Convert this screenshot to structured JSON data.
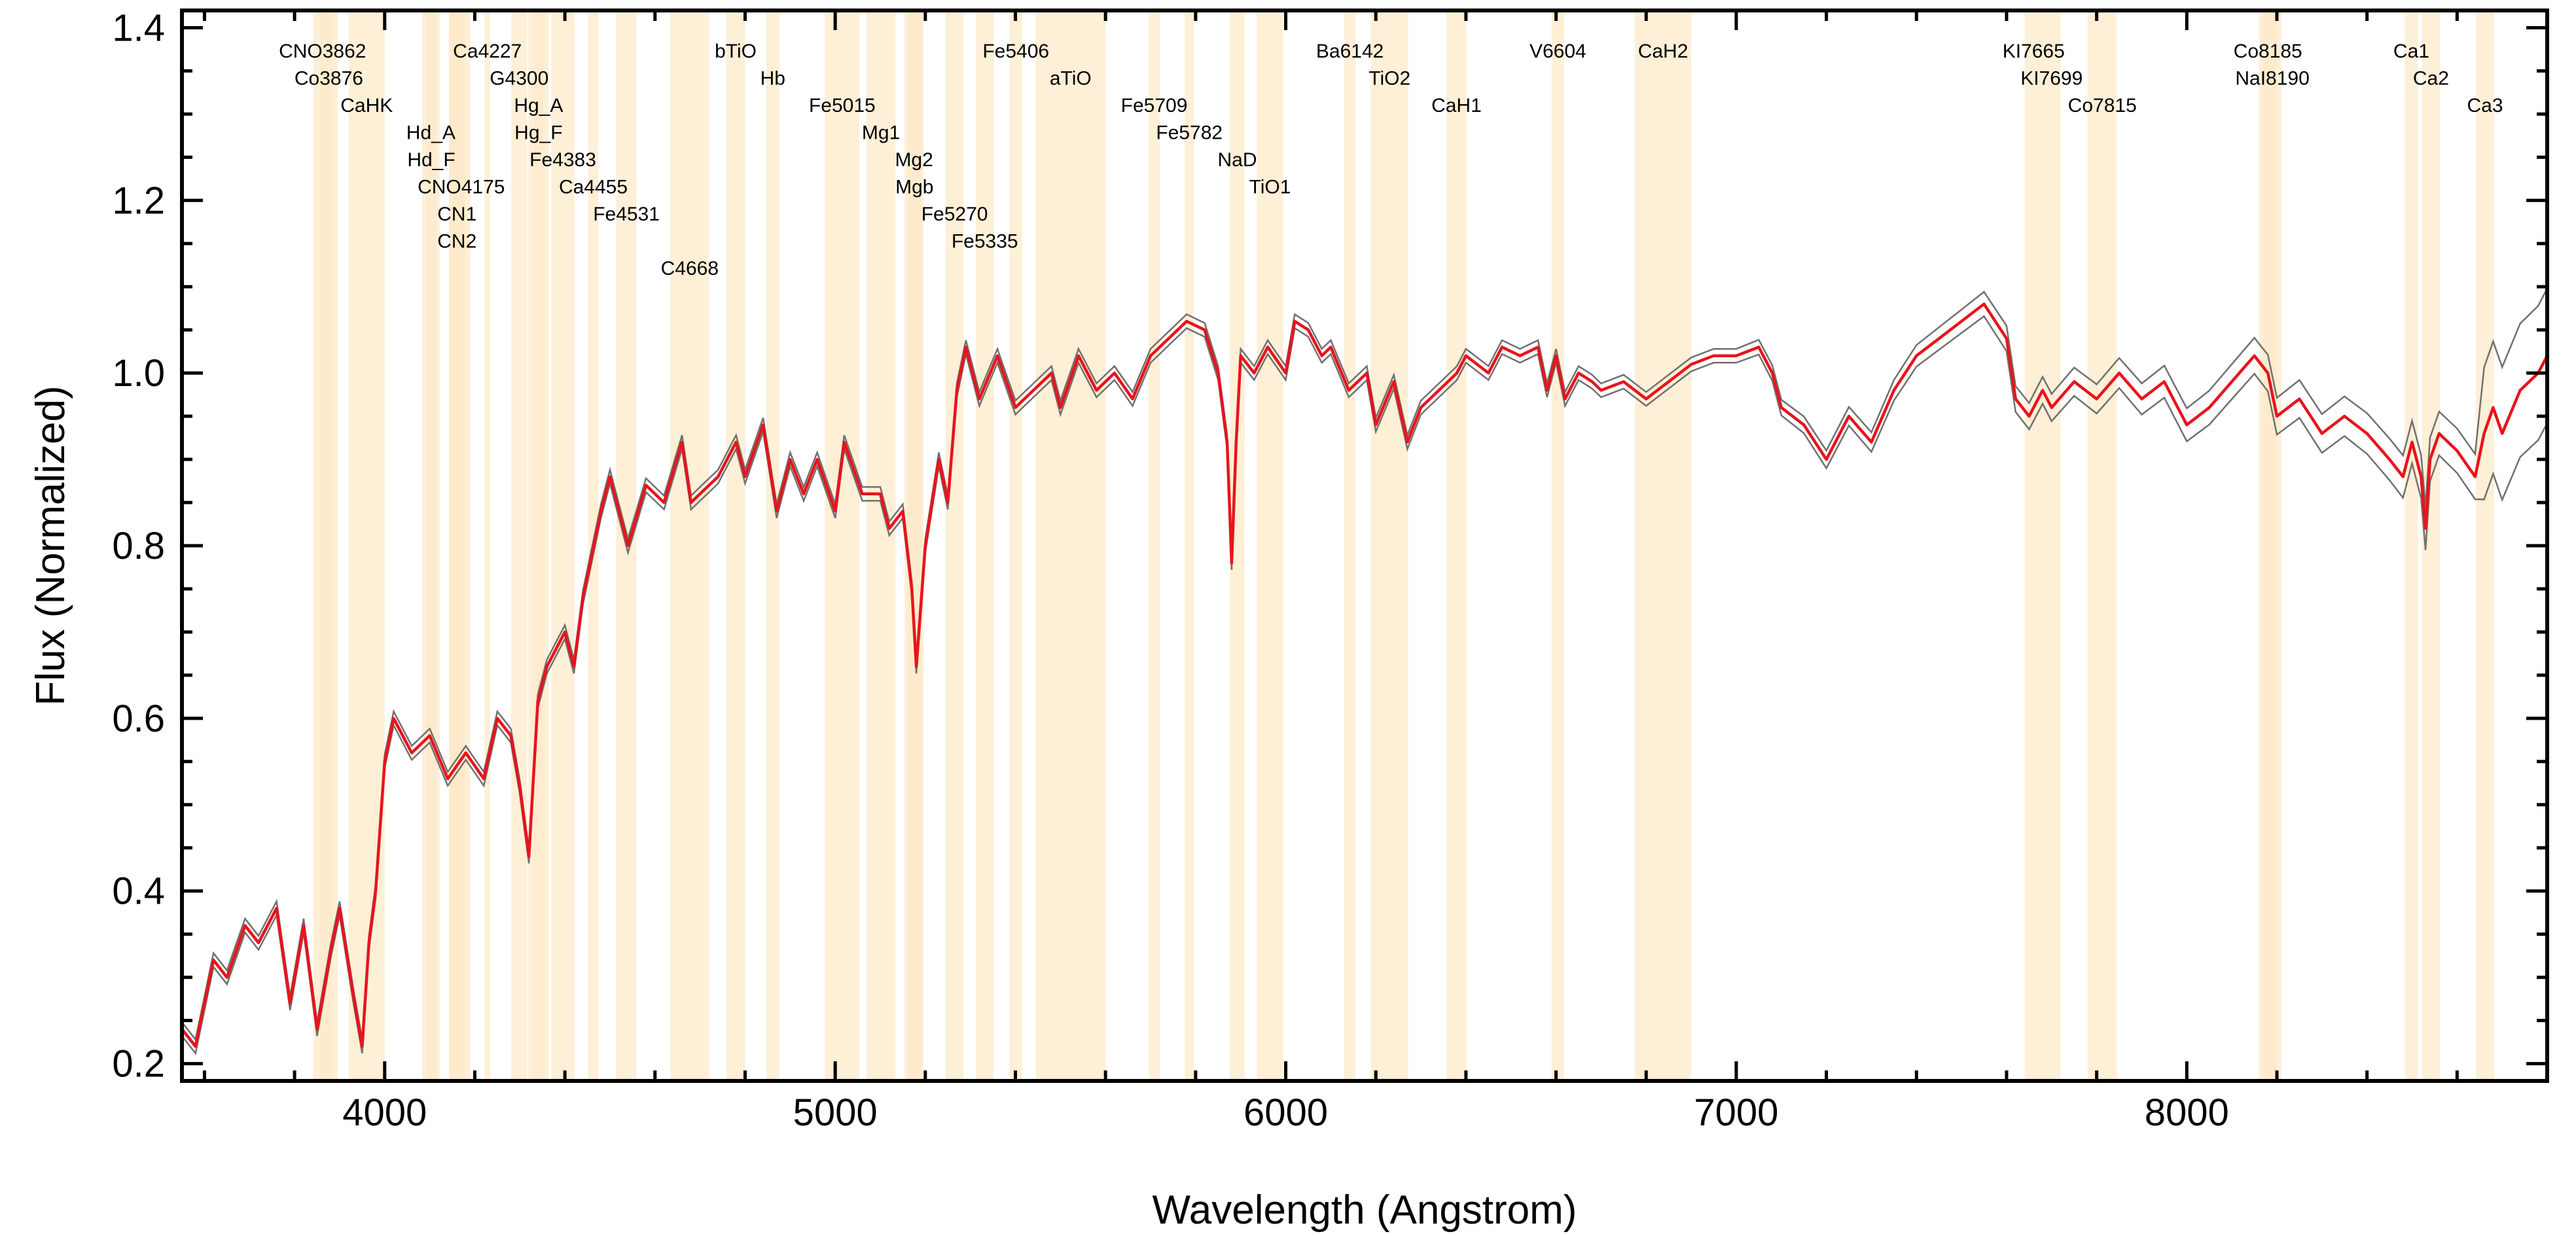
{
  "chart_data": {
    "type": "line",
    "title": "",
    "xlabel": "Wavelength (Angstrom)",
    "ylabel": "Flux (Normalized)",
    "xlim": [
      3550,
      8800
    ],
    "ylim": [
      0.18,
      1.42
    ],
    "xticks": [
      4000,
      5000,
      6000,
      7000,
      8000
    ],
    "xtick_labels": [
      "4000",
      "5000",
      "6000",
      "7000",
      "8000"
    ],
    "yticks": [
      0.2,
      0.4,
      0.6,
      0.8,
      1.0,
      1.2,
      1.4
    ],
    "ytick_labels": [
      "0.2",
      "0.4",
      "0.6",
      "0.8",
      "1.0",
      "1.2",
      "1.4"
    ],
    "grid": false,
    "legend": "none",
    "colors": {
      "spectrum": "#e8141c",
      "envelope": "#707070",
      "band_fill": "#fde9c9",
      "axes": "#000000"
    },
    "series": [
      {
        "role": "spectrum",
        "x": [
          3550,
          3580,
          3620,
          3650,
          3690,
          3720,
          3760,
          3790,
          3820,
          3850,
          3880,
          3900,
          3930,
          3950,
          3965,
          3980,
          4000,
          4020,
          4060,
          4100,
          4140,
          4180,
          4220,
          4250,
          4280,
          4300,
          4320,
          4340,
          4360,
          4400,
          4420,
          4440,
          4480,
          4500,
          4540,
          4580,
          4620,
          4660,
          4680,
          4700,
          4740,
          4780,
          4800,
          4840,
          4870,
          4900,
          4930,
          4960,
          5000,
          5020,
          5060,
          5100,
          5120,
          5150,
          5170,
          5180,
          5200,
          5230,
          5250,
          5270,
          5290,
          5320,
          5360,
          5400,
          5440,
          5480,
          5500,
          5540,
          5580,
          5620,
          5660,
          5700,
          5740,
          5780,
          5820,
          5850,
          5870,
          5880,
          5890,
          5900,
          5930,
          5960,
          6000,
          6020,
          6050,
          6080,
          6100,
          6140,
          6180,
          6200,
          6240,
          6270,
          6300,
          6340,
          6380,
          6400,
          6450,
          6480,
          6520,
          6560,
          6580,
          6600,
          6620,
          6650,
          6680,
          6700,
          6750,
          6800,
          6850,
          6900,
          6950,
          7000,
          7050,
          7080,
          7100,
          7150,
          7200,
          7250,
          7300,
          7350,
          7400,
          7450,
          7500,
          7550,
          7600,
          7620,
          7650,
          7680,
          7700,
          7750,
          7800,
          7850,
          7900,
          7950,
          8000,
          8050,
          8100,
          8150,
          8180,
          8200,
          8250,
          8300,
          8350,
          8400,
          8450,
          8480,
          8500,
          8520,
          8530,
          8540,
          8560,
          8600,
          8640,
          8660,
          8680,
          8700,
          8740,
          8780,
          8800
        ],
        "y": [
          0.24,
          0.22,
          0.32,
          0.3,
          0.36,
          0.34,
          0.38,
          0.27,
          0.36,
          0.24,
          0.33,
          0.38,
          0.28,
          0.22,
          0.34,
          0.4,
          0.55,
          0.6,
          0.56,
          0.58,
          0.53,
          0.56,
          0.53,
          0.6,
          0.58,
          0.52,
          0.44,
          0.62,
          0.66,
          0.7,
          0.66,
          0.74,
          0.84,
          0.88,
          0.8,
          0.87,
          0.85,
          0.92,
          0.85,
          0.86,
          0.88,
          0.92,
          0.88,
          0.94,
          0.84,
          0.9,
          0.86,
          0.9,
          0.84,
          0.92,
          0.86,
          0.86,
          0.82,
          0.84,
          0.75,
          0.66,
          0.8,
          0.9,
          0.85,
          0.98,
          1.03,
          0.97,
          1.02,
          0.96,
          0.98,
          1.0,
          0.96,
          1.02,
          0.98,
          1.0,
          0.97,
          1.02,
          1.04,
          1.06,
          1.05,
          1.0,
          0.92,
          0.78,
          0.92,
          1.02,
          1.0,
          1.03,
          1.0,
          1.06,
          1.05,
          1.02,
          1.03,
          0.98,
          1.0,
          0.94,
          0.99,
          0.92,
          0.96,
          0.98,
          1.0,
          1.02,
          1.0,
          1.03,
          1.02,
          1.03,
          0.98,
          1.02,
          0.97,
          1.0,
          0.99,
          0.98,
          0.99,
          0.97,
          0.99,
          1.01,
          1.02,
          1.02,
          1.03,
          1.0,
          0.96,
          0.94,
          0.9,
          0.95,
          0.92,
          0.98,
          1.02,
          1.04,
          1.06,
          1.08,
          1.04,
          0.97,
          0.95,
          0.98,
          0.96,
          0.99,
          0.97,
          1.0,
          0.97,
          0.99,
          0.94,
          0.96,
          0.99,
          1.02,
          1.0,
          0.95,
          0.97,
          0.93,
          0.95,
          0.93,
          0.9,
          0.88,
          0.92,
          0.88,
          0.82,
          0.9,
          0.93,
          0.91,
          0.88,
          0.93,
          0.96,
          0.93,
          0.98,
          1.0,
          1.02
        ]
      }
    ],
    "bands": [
      {
        "name": "CNO3862",
        "start": 3841,
        "end": 3883
      },
      {
        "name": "Co3876",
        "start": 3856,
        "end": 3896
      },
      {
        "name": "CaHK",
        "start": 3920,
        "end": 4000
      },
      {
        "name": "Hd_A",
        "start": 4083,
        "end": 4122
      },
      {
        "name": "Hd_F",
        "start": 4092,
        "end": 4115
      },
      {
        "name": "CNO4175",
        "start": 4150,
        "end": 4190
      },
      {
        "name": "CN1",
        "start": 4143,
        "end": 4178
      },
      {
        "name": "CN2",
        "start": 4143,
        "end": 4178
      },
      {
        "name": "Ca4227",
        "start": 4222,
        "end": 4234
      },
      {
        "name": "G4300",
        "start": 4281,
        "end": 4316
      },
      {
        "name": "Hg_A",
        "start": 4319,
        "end": 4364
      },
      {
        "name": "Hg_F",
        "start": 4331,
        "end": 4352
      },
      {
        "name": "Fe4383",
        "start": 4370,
        "end": 4421
      },
      {
        "name": "Ca4455",
        "start": 4452,
        "end": 4474
      },
      {
        "name": "Fe4531",
        "start": 4514,
        "end": 4559
      },
      {
        "name": "C4668",
        "start": 4634,
        "end": 4720
      },
      {
        "name": "bTiO",
        "start": 4758,
        "end": 4800
      },
      {
        "name": "Hb",
        "start": 4847,
        "end": 4876
      },
      {
        "name": "Fe5015",
        "start": 4977,
        "end": 5054
      },
      {
        "name": "Mg1",
        "start": 5069,
        "end": 5134
      },
      {
        "name": "Mg2",
        "start": 5154,
        "end": 5196
      },
      {
        "name": "Mgb",
        "start": 5160,
        "end": 5192
      },
      {
        "name": "Fe5270",
        "start": 5245,
        "end": 5285
      },
      {
        "name": "Fe5335",
        "start": 5312,
        "end": 5352
      },
      {
        "name": "Fe5406",
        "start": 5387,
        "end": 5415
      },
      {
        "name": "aTiO",
        "start": 5445,
        "end": 5600
      },
      {
        "name": "Fe5709",
        "start": 5696,
        "end": 5720
      },
      {
        "name": "Fe5782",
        "start": 5776,
        "end": 5796
      },
      {
        "name": "NaD",
        "start": 5876,
        "end": 5909
      },
      {
        "name": "TiO1",
        "start": 5936,
        "end": 5994
      },
      {
        "name": "Ba6142",
        "start": 6130,
        "end": 6155
      },
      {
        "name": "TiO2",
        "start": 6189,
        "end": 6272
      },
      {
        "name": "CaH1",
        "start": 6357,
        "end": 6401
      },
      {
        "name": "V6604",
        "start": 6590,
        "end": 6618
      },
      {
        "name": "CaH2",
        "start": 6775,
        "end": 6900
      },
      {
        "name": "KI7665",
        "start": 7640,
        "end": 7680
      },
      {
        "name": "KI7699",
        "start": 7680,
        "end": 7720
      },
      {
        "name": "Co7815",
        "start": 7780,
        "end": 7845
      },
      {
        "name": "Co8185",
        "start": 8160,
        "end": 8200
      },
      {
        "name": "NaI8190",
        "start": 8170,
        "end": 8210
      },
      {
        "name": "Ca1",
        "start": 8484,
        "end": 8513
      },
      {
        "name": "Ca2",
        "start": 8522,
        "end": 8562
      },
      {
        "name": "Ca3",
        "start": 8642,
        "end": 8682
      }
    ]
  }
}
